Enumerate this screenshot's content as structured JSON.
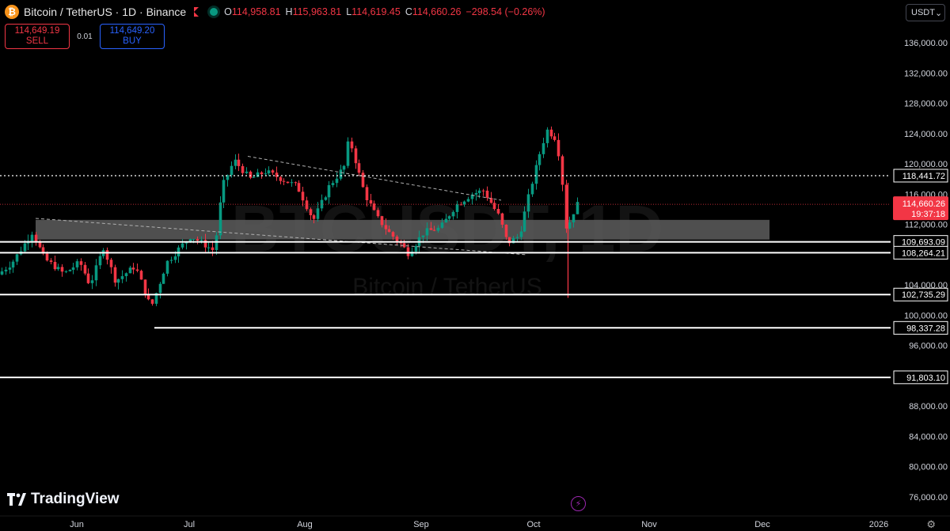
{
  "header": {
    "symbol_icon": "bitcoin-icon",
    "title": "Bitcoin / TetherUS · 1D · Binance",
    "open_key": "O",
    "open": "114,958.81",
    "high_key": "H",
    "high": "115,963.81",
    "low_key": "L",
    "low": "114,619.45",
    "close_key": "C",
    "close": "114,660.26",
    "change": "−298.54 (−0.26%)"
  },
  "trade": {
    "sell_price": "114,649.19",
    "sell_label": "SELL",
    "spread": "0.01",
    "buy_price": "114,649.20",
    "buy_label": "BUY"
  },
  "currency_select": "USDT",
  "watermark": {
    "ticker": "BTCUSDT, 1D",
    "name": "Bitcoin / TetherUS"
  },
  "branding": "TradingView",
  "colors": {
    "up": "#089981",
    "down": "#f23645",
    "background": "#000000",
    "accent": "#2962ff"
  },
  "chart_data": {
    "type": "candlestick",
    "y_axis_ticks": [
      "136,000.00",
      "132,000.00",
      "128,000.00",
      "124,000.00",
      "120,000.00",
      "116,000.00",
      "112,000.00",
      "104,000.00",
      "100,000.00",
      "96,000.00",
      "88,000.00",
      "84,000.00",
      "80,000.00",
      "76,000.00"
    ],
    "y_range": [
      74000,
      139000
    ],
    "x_axis_labels": [
      "Jun",
      "Jul",
      "Aug",
      "Sep",
      "Oct",
      "Nov",
      "Dec",
      "2026"
    ],
    "horizontal_levels": [
      "118,441.72",
      "109,693.09",
      "108,264.21",
      "102,735.29",
      "98,337.28",
      "91,803.10"
    ],
    "current_price": "114,660.26",
    "countdown": "19:37:18",
    "zone": [
      110000,
      112600
    ]
  }
}
